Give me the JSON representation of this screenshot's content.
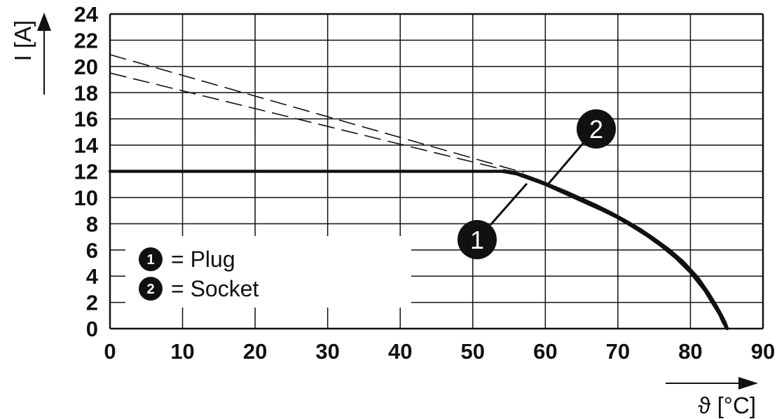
{
  "chart_data": {
    "type": "line",
    "title": "",
    "ylabel": "I [A]",
    "xlabel": "ϑ [°C]",
    "xlim": [
      0,
      90
    ],
    "ylim": [
      0,
      24
    ],
    "x_ticks": [
      0,
      10,
      20,
      30,
      40,
      50,
      60,
      70,
      80,
      90
    ],
    "y_ticks": [
      0,
      2,
      4,
      6,
      8,
      10,
      12,
      14,
      16,
      18,
      20,
      22,
      24
    ],
    "grid": true,
    "legend_position": "bottom-left",
    "legend": [
      {
        "marker": "1",
        "label": "= Plug"
      },
      {
        "marker": "2",
        "label": "= Socket"
      }
    ],
    "series": [
      {
        "marker": "1",
        "style": "solid",
        "x": [
          0,
          54,
          56,
          58,
          60,
          62,
          64,
          66,
          68,
          70,
          72,
          74,
          76,
          78,
          80,
          82,
          83,
          84,
          84.5,
          85
        ],
        "y": [
          12,
          12,
          11.8,
          11.4,
          11.0,
          10.5,
          10.0,
          9.5,
          9.0,
          8.45,
          7.8,
          7.1,
          6.3,
          5.4,
          4.3,
          2.9,
          2.0,
          1.1,
          0.5,
          0
        ]
      },
      {
        "marker": "2",
        "style": "solid",
        "x": [
          0,
          55,
          57,
          59,
          61,
          63,
          65,
          67,
          69,
          71,
          73,
          75,
          77,
          79,
          81,
          82.5,
          83.5,
          84.3,
          84.8,
          85.1
        ],
        "y": [
          12,
          12,
          11.7,
          11.3,
          10.85,
          10.4,
          9.9,
          9.4,
          8.85,
          8.25,
          7.6,
          6.85,
          6.05,
          5.1,
          3.9,
          2.7,
          1.8,
          1.0,
          0.45,
          0
        ]
      },
      {
        "marker": "1",
        "style": "dashed",
        "x": [
          0,
          56
        ],
        "y": [
          19.5,
          11.9
        ]
      },
      {
        "marker": "2",
        "style": "dashed",
        "x": [
          0,
          57
        ],
        "y": [
          20.9,
          11.9
        ]
      }
    ],
    "annotations": [
      {
        "text": "2",
        "points_to_series": "2"
      },
      {
        "text": "1",
        "points_to_series": "1"
      }
    ]
  },
  "colors": {
    "ink": "#111111",
    "grid": "#111111",
    "background": "#ffffff"
  }
}
